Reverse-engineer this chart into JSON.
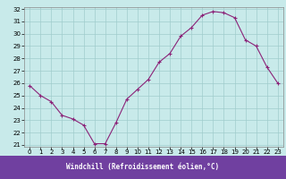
{
  "x": [
    0,
    1,
    2,
    3,
    4,
    5,
    6,
    7,
    8,
    9,
    10,
    11,
    12,
    13,
    14,
    15,
    16,
    17,
    18,
    19,
    20,
    21,
    22,
    23
  ],
  "y": [
    25.8,
    25.0,
    24.5,
    23.4,
    23.1,
    22.6,
    21.1,
    21.1,
    22.8,
    24.7,
    25.5,
    26.3,
    27.7,
    28.4,
    29.8,
    30.5,
    31.5,
    31.8,
    31.7,
    31.3,
    29.5,
    29.0,
    27.3,
    26.0
  ],
  "line_color": "#8b2278",
  "marker": "+",
  "marker_size": 3,
  "marker_linewidth": 0.8,
  "bg_color": "#c8eaea",
  "grid_color": "#a0cccc",
  "xlabel": "Windchill (Refroidissement éolien,°C)",
  "xlabel_color": "#ffffff",
  "xlabel_bg": "#7040a0",
  "ylim": [
    21,
    32
  ],
  "xlim": [
    -0.5,
    23.5
  ],
  "yticks": [
    21,
    22,
    23,
    24,
    25,
    26,
    27,
    28,
    29,
    30,
    31,
    32
  ],
  "xticks": [
    0,
    1,
    2,
    3,
    4,
    5,
    6,
    7,
    8,
    9,
    10,
    11,
    12,
    13,
    14,
    15,
    16,
    17,
    18,
    19,
    20,
    21,
    22,
    23
  ],
  "tick_label_size": 5.0,
  "axis_label_size": 5.5,
  "line_width": 0.8
}
